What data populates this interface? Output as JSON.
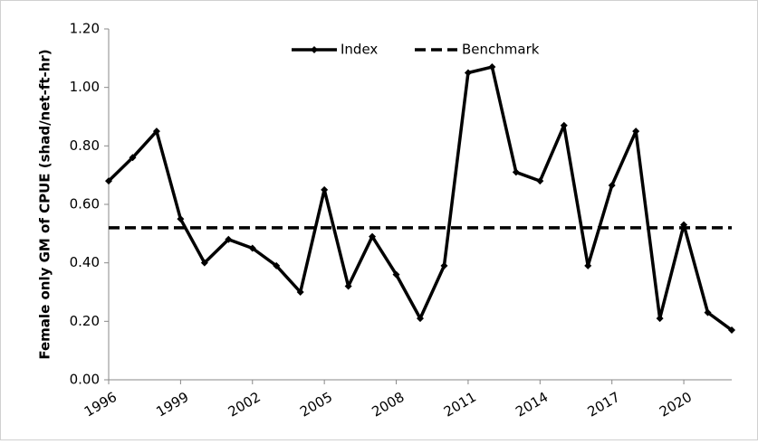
{
  "chart_data": {
    "type": "line",
    "ylabel": "Female only GM of CPUE (shad/net-ft-hr)",
    "x": [
      1996,
      1997,
      1998,
      1999,
      2000,
      2001,
      2002,
      2003,
      2004,
      2005,
      2006,
      2007,
      2008,
      2009,
      2010,
      2011,
      2012,
      2013,
      2014,
      2015,
      2016,
      2017,
      2018,
      2019,
      2020,
      2021,
      2022
    ],
    "series": [
      {
        "name": "Index",
        "color": "#000000",
        "values": [
          0.68,
          0.76,
          0.85,
          0.55,
          0.4,
          0.48,
          0.45,
          0.39,
          0.3,
          0.65,
          0.32,
          0.49,
          0.36,
          0.21,
          0.39,
          1.05,
          1.07,
          0.71,
          0.68,
          0.87,
          0.39,
          0.665,
          0.85,
          0.21,
          0.53,
          0.23,
          0.17
        ]
      }
    ],
    "benchmark": {
      "name": "Benchmark",
      "value": 0.52,
      "color": "#000000"
    },
    "xlim": [
      1996,
      2022
    ],
    "xticks": [
      1996,
      1999,
      2002,
      2005,
      2008,
      2011,
      2014,
      2017,
      2020
    ],
    "ylim": [
      0,
      1.2
    ],
    "yticks": [
      {
        "value": 0,
        "label": "0.00"
      },
      {
        "value": 0.2,
        "label": "0.20"
      },
      {
        "value": 0.4,
        "label": "0.40"
      },
      {
        "value": 0.6,
        "label": "0.60"
      },
      {
        "value": 0.8,
        "label": "0.80"
      },
      {
        "value": 1.0,
        "label": "1.00"
      },
      {
        "value": 1.2,
        "label": "1.20"
      }
    ],
    "legend": "top",
    "grid": false
  }
}
